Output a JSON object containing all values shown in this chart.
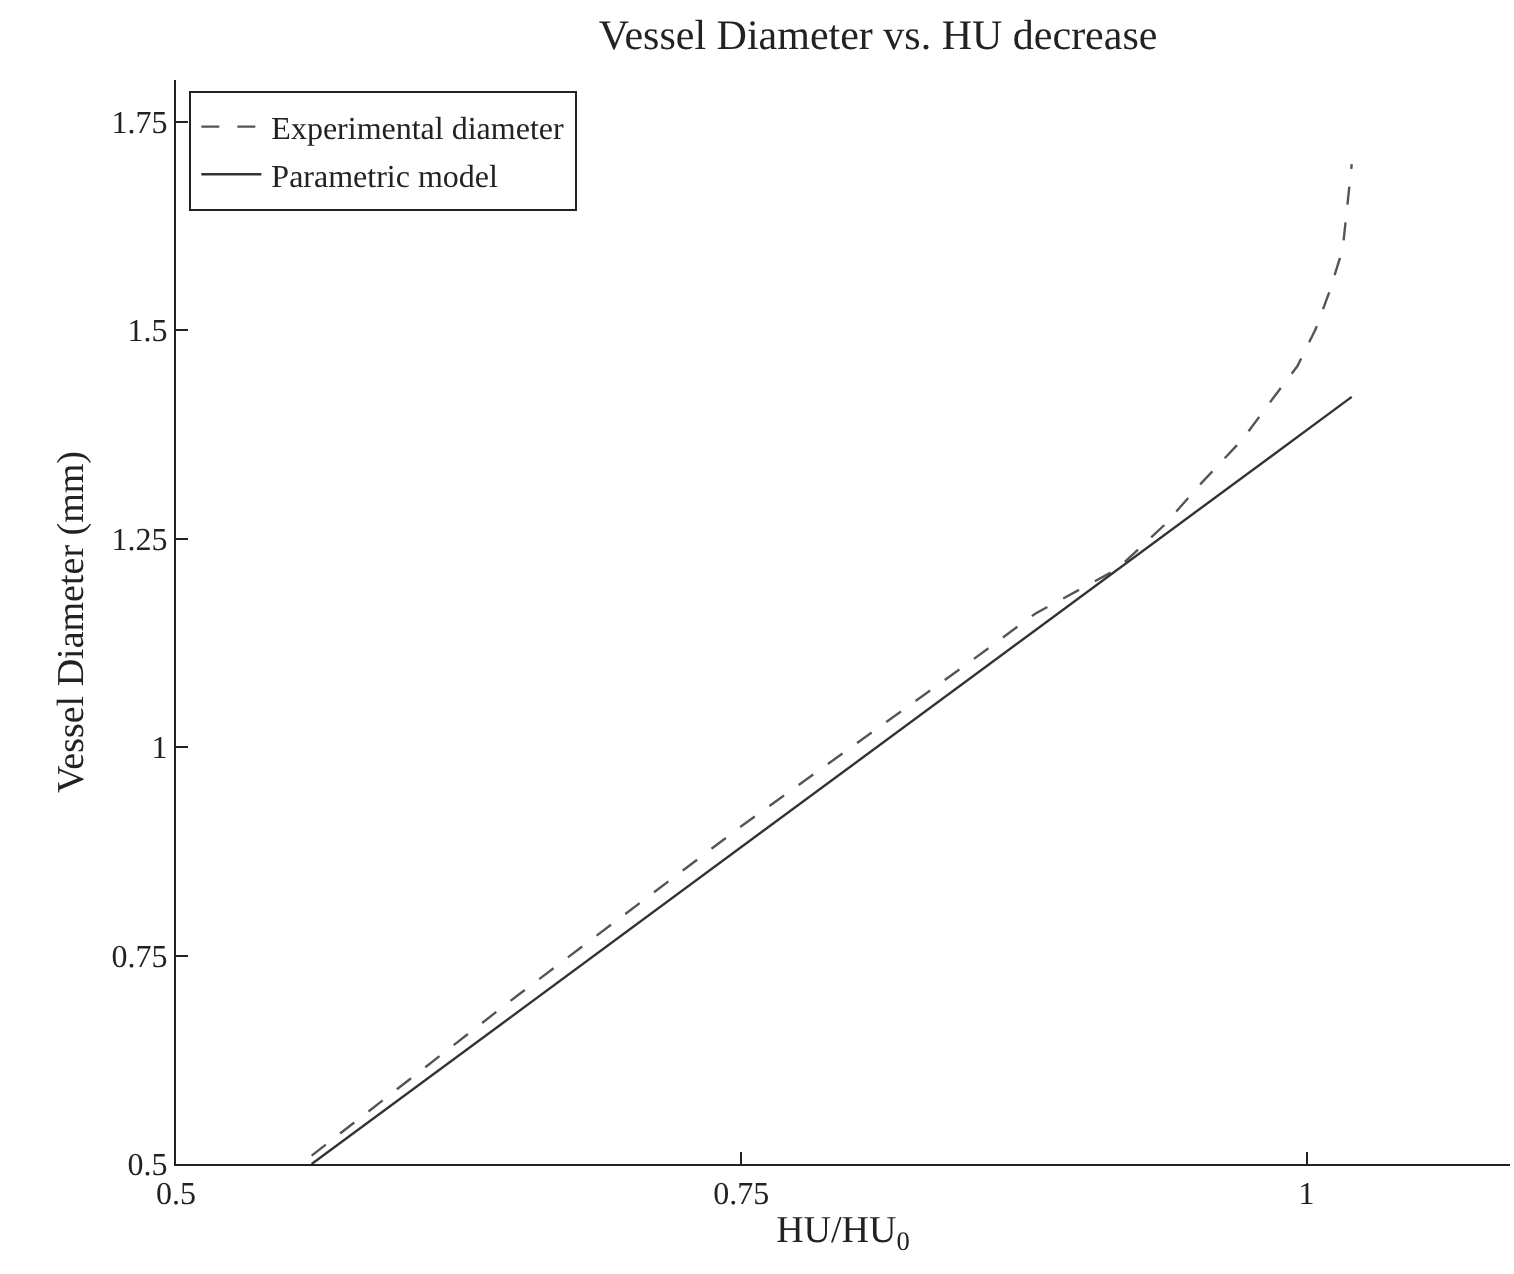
{
  "chart_data": {
    "type": "line",
    "title": "Vessel Diameter vs. HU decrease",
    "xlabel": "HU/HU$_{0}$",
    "ylabel": "Vessel Diameter (mm)",
    "xlim": [
      0.5,
      1.09
    ],
    "xticks": [
      0.5,
      0.75,
      1
    ],
    "ylim": [
      0.5,
      1.8
    ],
    "yticks": [
      0.5,
      0.75,
      1,
      1.25,
      1.5,
      1.75
    ],
    "grid": false,
    "legend": "top left",
    "marker": "none",
    "series": [
      {
        "name": "Experimental diameter",
        "color": "#555555",
        "line_style": "dashed",
        "x": [
          0.56,
          0.65,
          0.75,
          0.85,
          0.88,
          0.916,
          0.937,
          0.954,
          0.972,
          0.984,
          0.996,
          1.004,
          1.01,
          1.016,
          1.02
        ],
        "values": [
          0.51,
          0.7,
          0.905,
          1.1,
          1.16,
          1.213,
          1.266,
          1.318,
          1.37,
          1.414,
          1.457,
          1.501,
          1.545,
          1.597,
          1.699
        ]
      },
      {
        "name": "Parametric model",
        "color": "#333333",
        "line_style": "solid",
        "x": [
          0.56,
          1.02
        ],
        "values": [
          0.5,
          1.42
        ]
      }
    ]
  }
}
